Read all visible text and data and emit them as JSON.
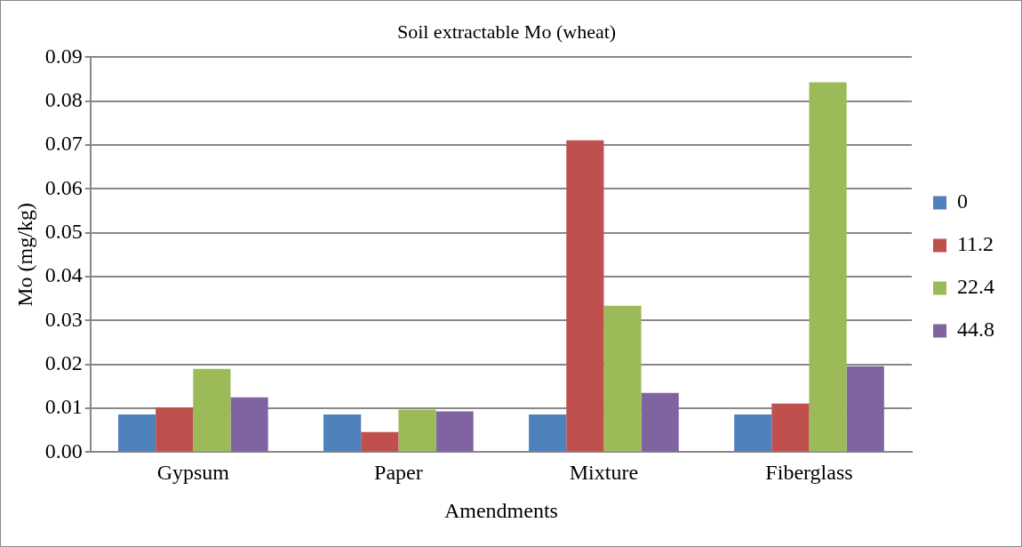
{
  "chart_data": {
    "type": "bar",
    "title": "Soil extractable Mo (wheat)",
    "xlabel": "Amendments",
    "ylabel": "Mo (mg/kg)",
    "categories": [
      "Gypsum",
      "Paper",
      "Mixture",
      "Fiberglass"
    ],
    "series": [
      {
        "name": "0",
        "color": "#4f81bd",
        "values": [
          0.0086,
          0.0086,
          0.0086,
          0.0086
        ]
      },
      {
        "name": "11.2",
        "color": "#c0504d",
        "values": [
          0.0102,
          0.0046,
          0.0711,
          0.0111
        ]
      },
      {
        "name": "22.4",
        "color": "#9bbb59",
        "values": [
          0.019,
          0.0097,
          0.0334,
          0.0843
        ]
      },
      {
        "name": "44.8",
        "color": "#8064a2",
        "values": [
          0.0125,
          0.0093,
          0.0135,
          0.0196
        ]
      }
    ],
    "ylim": [
      0,
      0.09
    ],
    "yticks": [
      {
        "value": 0,
        "label": "0.00"
      },
      0.01,
      0.02,
      0.03,
      0.04,
      0.05,
      0.06,
      0.07,
      0.08,
      0.09
    ],
    "grid": "y",
    "legend": "right"
  }
}
